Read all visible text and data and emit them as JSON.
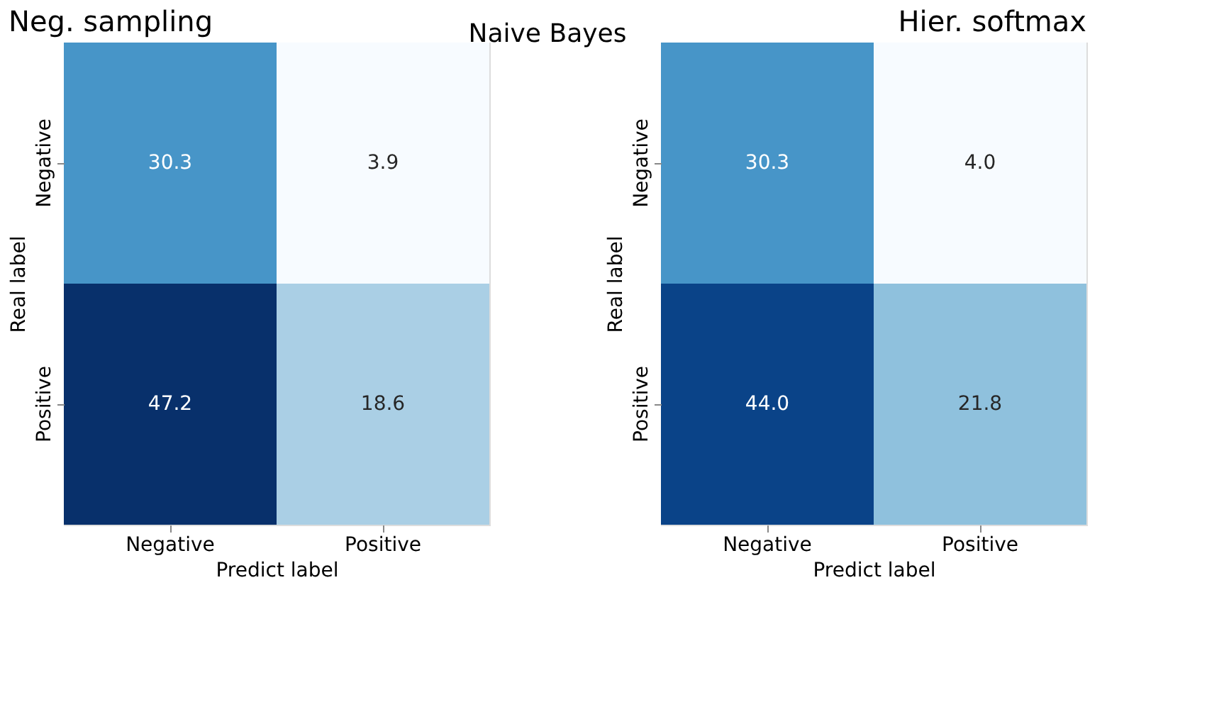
{
  "chart_data": [
    {
      "type": "heatmap",
      "title": "Neg. sampling",
      "annotations": [
        "Naive Bayes"
      ],
      "xlabel": "Predict label",
      "ylabel": "Real label",
      "categories": [
        "Negative",
        "Positive"
      ],
      "y_categories": [
        "Negative",
        "Positive"
      ],
      "cells": [
        [
          30.3,
          3.9
        ],
        [
          47.2,
          18.6
        ]
      ],
      "data_labels": true
    },
    {
      "type": "heatmap",
      "title": "Hier. softmax",
      "xlabel": "Predict label",
      "ylabel": "Real label",
      "categories": [
        "Negative",
        "Positive"
      ],
      "y_categories": [
        "Negative",
        "Positive"
      ],
      "cells": [
        [
          30.3,
          4.0
        ],
        [
          44.0,
          21.8
        ]
      ],
      "cell_labels": [
        [
          "30.3",
          "4.0"
        ],
        [
          "44.0",
          "21.8"
        ]
      ],
      "data_labels": true
    }
  ]
}
